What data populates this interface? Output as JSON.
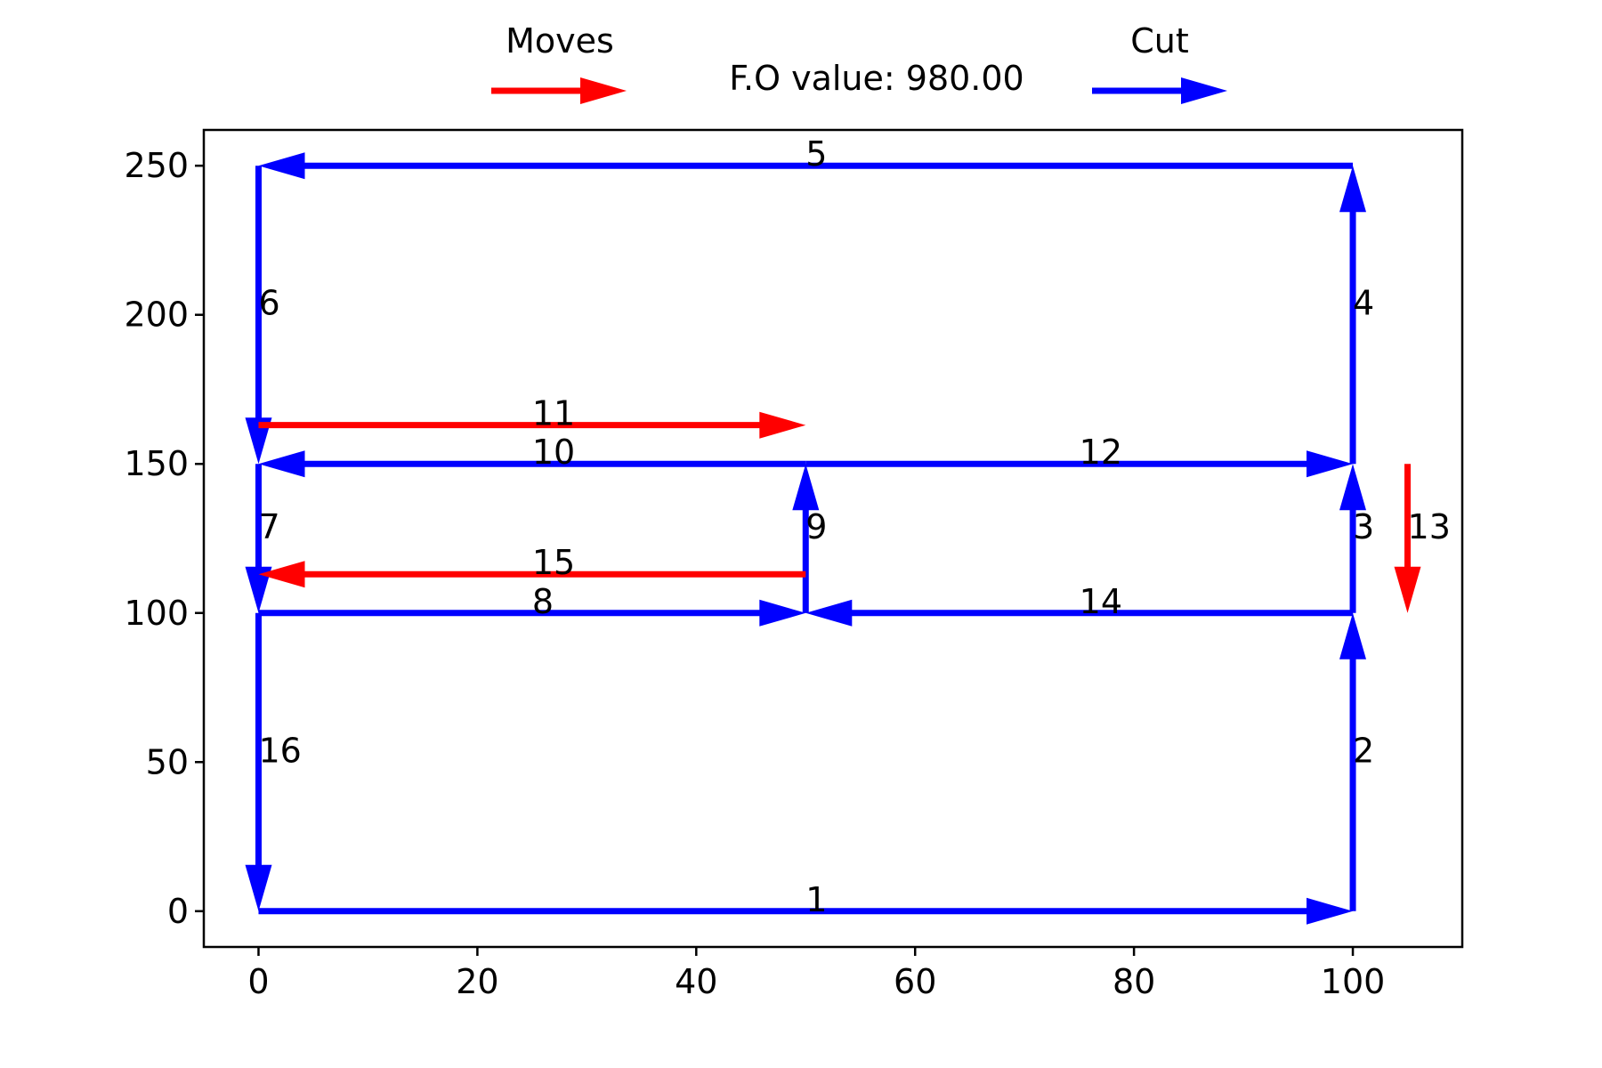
{
  "chart_data": {
    "type": "line",
    "title": "F.O value: 980.00",
    "xlabel": "",
    "ylabel": "",
    "xlim": [
      -5,
      110
    ],
    "ylim": [
      -12,
      262
    ],
    "x_ticks": [
      0,
      20,
      40,
      60,
      80,
      100
    ],
    "x_tick_labels": [
      "0",
      "20",
      "40",
      "60",
      "80",
      "100"
    ],
    "y_ticks": [
      0,
      50,
      100,
      150,
      200,
      250
    ],
    "y_tick_labels": [
      "0",
      "50",
      "100",
      "150",
      "200",
      "250"
    ],
    "grid": false,
    "legend": {
      "placement": "top",
      "entries": [
        {
          "label": "Moves",
          "color": "#ff0000"
        },
        {
          "label": "Cut",
          "color": "#0000ff"
        }
      ]
    },
    "series": [
      {
        "name": "Cut",
        "color": "#0000ff",
        "segments": [
          {
            "label": "1",
            "x1": 0,
            "y1": 0,
            "x2": 100,
            "y2": 0
          },
          {
            "label": "2",
            "x1": 100,
            "y1": 0,
            "x2": 100,
            "y2": 100
          },
          {
            "label": "3",
            "x1": 100,
            "y1": 100,
            "x2": 100,
            "y2": 150
          },
          {
            "label": "4",
            "x1": 100,
            "y1": 150,
            "x2": 100,
            "y2": 250
          },
          {
            "label": "5",
            "x1": 100,
            "y1": 250,
            "x2": 0,
            "y2": 250
          },
          {
            "label": "6",
            "x1": 0,
            "y1": 250,
            "x2": 0,
            "y2": 150
          },
          {
            "label": "7",
            "x1": 0,
            "y1": 150,
            "x2": 0,
            "y2": 100
          },
          {
            "label": "8",
            "x1": 0,
            "y1": 100,
            "x2": 50,
            "y2": 100
          },
          {
            "label": "9",
            "x1": 50,
            "y1": 100,
            "x2": 50,
            "y2": 150
          },
          {
            "label": "10",
            "x1": 50,
            "y1": 150,
            "x2": 0,
            "y2": 150
          },
          {
            "label": "12",
            "x1": 50,
            "y1": 150,
            "x2": 100,
            "y2": 150
          },
          {
            "label": "14",
            "x1": 100,
            "y1": 100,
            "x2": 50,
            "y2": 100
          },
          {
            "label": "16",
            "x1": 0,
            "y1": 100,
            "x2": 0,
            "y2": 0
          }
        ]
      },
      {
        "name": "Moves",
        "color": "#ff0000",
        "segments": [
          {
            "label": "11",
            "x1": 0,
            "y1": 163,
            "x2": 50,
            "y2": 163
          },
          {
            "label": "13",
            "x1": 105,
            "y1": 150,
            "x2": 105,
            "y2": 100
          },
          {
            "label": "15",
            "x1": 50,
            "y1": 113,
            "x2": 0,
            "y2": 113
          }
        ]
      }
    ]
  }
}
